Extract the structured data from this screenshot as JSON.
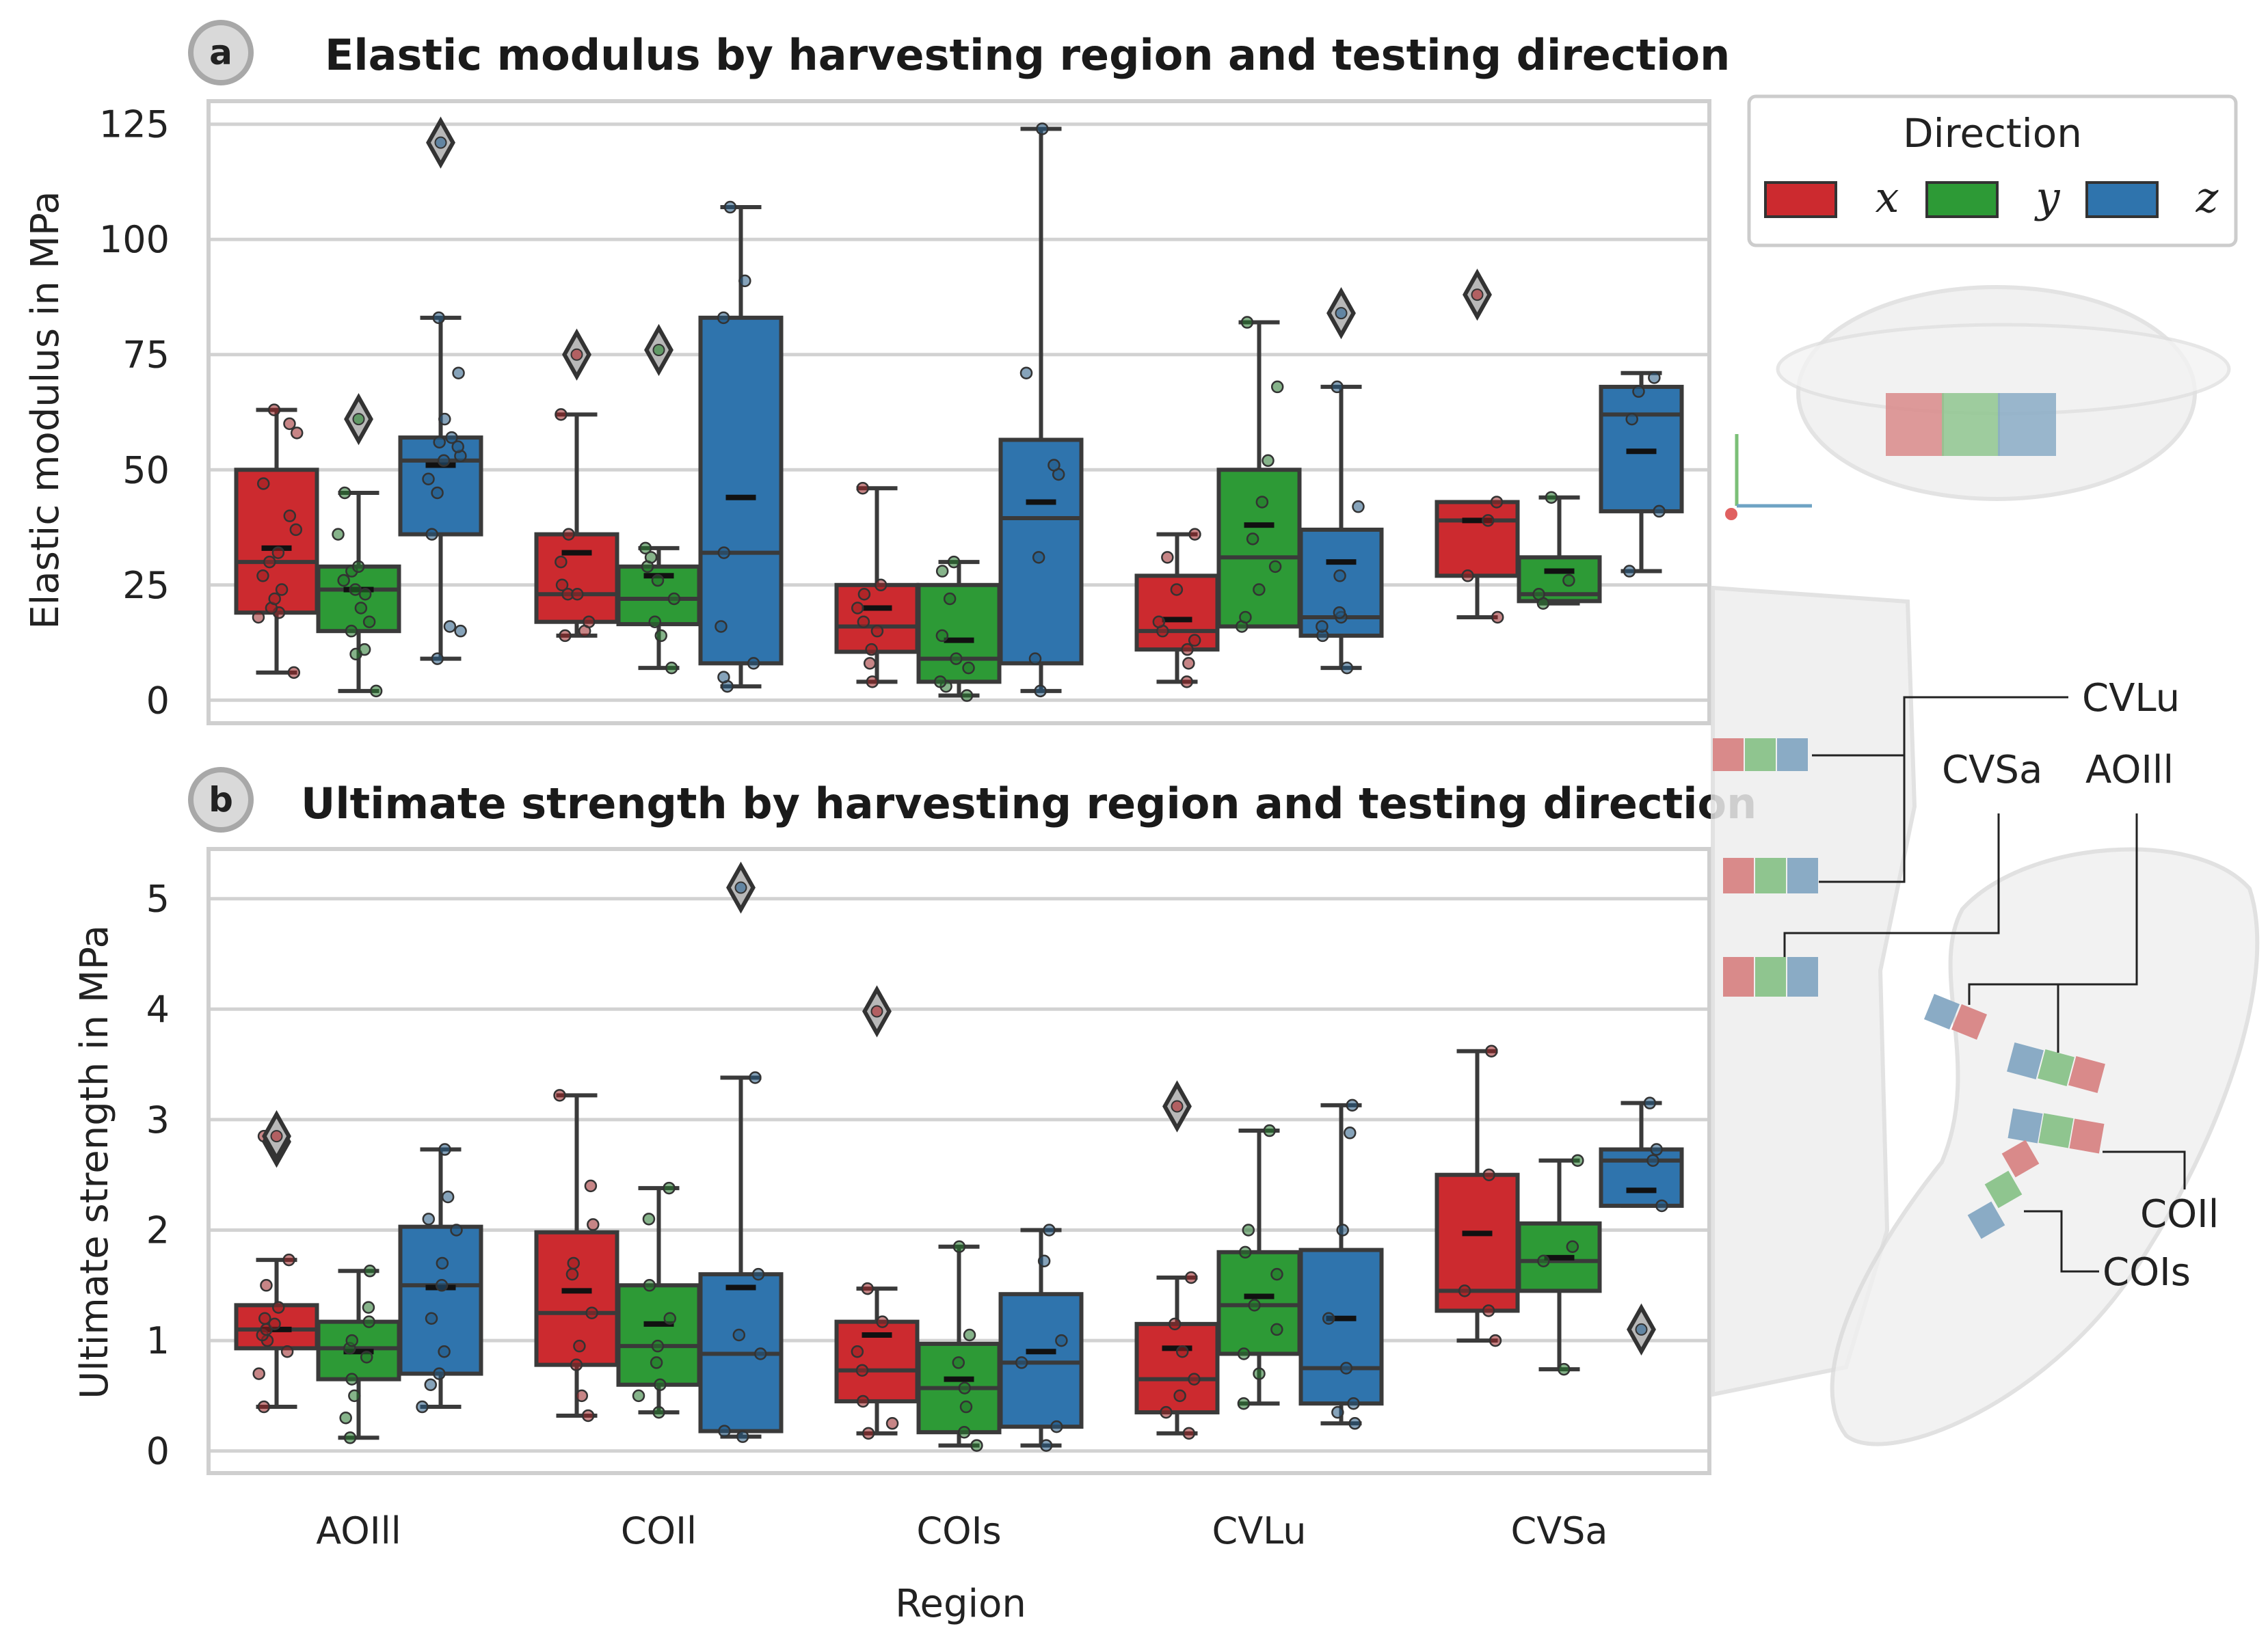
{
  "colors": {
    "x": "#cc2a2f",
    "y": "#2d9a36",
    "z": "#2f74ad"
  },
  "legend": {
    "title": "Direction",
    "items": [
      {
        "key": "x",
        "label": "x"
      },
      {
        "key": "y",
        "label": "y"
      },
      {
        "key": "z",
        "label": "z"
      }
    ]
  },
  "xlabel": "Region",
  "illustration": {
    "labels": [
      "CVLu",
      "CVSa",
      "AOIll",
      "COIl",
      "COIs"
    ]
  },
  "chart_data": [
    {
      "type": "box",
      "badge": "a",
      "title": "Elastic modulus by harvesting region and testing direction",
      "ylabel": "Elastic modulus in MPa",
      "ylim": [
        -5,
        130
      ],
      "yticks": [
        "0",
        "25",
        "50",
        "75",
        "100",
        "125"
      ],
      "ytick_values": [
        0,
        25,
        50,
        75,
        100,
        125
      ],
      "categories": [
        "AOIll",
        "COIl",
        "COIs",
        "CVLu",
        "CVSa"
      ],
      "series": [
        {
          "name": "x",
          "boxes": [
            {
              "q1": 19,
              "median": 30,
              "q3": 50,
              "whislo": 6,
              "whishi": 63,
              "mean": 33,
              "outliers": [],
              "points": [
                6,
                18,
                19,
                20,
                22,
                24,
                27,
                30,
                32,
                37,
                40,
                47,
                58,
                60,
                63
              ]
            },
            {
              "q1": 17,
              "median": 23,
              "q3": 36,
              "whislo": 14,
              "whishi": 62,
              "mean": 32,
              "outliers": [
                75
              ],
              "points": [
                14,
                15,
                17,
                23,
                23,
                25,
                30,
                36,
                62
              ]
            },
            {
              "q1": 10.5,
              "median": 16,
              "q3": 25,
              "whislo": 4,
              "whishi": 46,
              "mean": 20,
              "outliers": [],
              "points": [
                4,
                8,
                11,
                15,
                17,
                20,
                23,
                25,
                46
              ]
            },
            {
              "q1": 11,
              "median": 15,
              "q3": 27,
              "whislo": 4,
              "whishi": 36,
              "mean": 17.5,
              "outliers": [],
              "points": [
                4,
                8,
                11,
                13,
                15,
                17,
                24,
                31,
                36
              ]
            },
            {
              "q1": 27,
              "median": 39,
              "q3": 43,
              "whislo": 18,
              "whishi": 43,
              "mean": 39,
              "outliers": [
                88
              ],
              "points": [
                18,
                27,
                39,
                43
              ]
            }
          ]
        },
        {
          "name": "y",
          "boxes": [
            {
              "q1": 15,
              "median": 24,
              "q3": 29,
              "whislo": 2,
              "whishi": 45,
              "mean": 24,
              "outliers": [
                61
              ],
              "points": [
                2,
                10,
                11,
                15,
                17,
                20,
                23,
                24,
                26,
                28,
                29,
                36,
                45
              ]
            },
            {
              "q1": 16.5,
              "median": 22,
              "q3": 29,
              "whislo": 7,
              "whishi": 33,
              "mean": 27,
              "outliers": [
                76
              ],
              "points": [
                7,
                14,
                17,
                22,
                26,
                29,
                31,
                33
              ]
            },
            {
              "q1": 4,
              "median": 9,
              "q3": 25,
              "whislo": 1,
              "whishi": 30,
              "mean": 13,
              "outliers": [],
              "points": [
                1,
                3,
                4,
                7,
                9,
                14,
                22,
                28,
                30
              ]
            },
            {
              "q1": 16,
              "median": 31,
              "q3": 50,
              "whislo": 16,
              "whishi": 82,
              "mean": 38,
              "outliers": [],
              "points": [
                16,
                18,
                24,
                29,
                35,
                43,
                52,
                68,
                82
              ]
            },
            {
              "q1": 21.5,
              "median": 23,
              "q3": 31,
              "whislo": 21,
              "whishi": 44,
              "mean": 28,
              "outliers": [],
              "points": [
                21,
                23,
                26,
                44
              ]
            }
          ]
        },
        {
          "name": "z",
          "boxes": [
            {
              "q1": 36,
              "median": 52,
              "q3": 57,
              "whislo": 9,
              "whishi": 83,
              "mean": 51,
              "outliers": [
                121
              ],
              "points": [
                9,
                15,
                16,
                36,
                45,
                48,
                52,
                53,
                55,
                56,
                57,
                61,
                71,
                83
              ]
            },
            {
              "q1": 8,
              "median": 32,
              "q3": 83,
              "whislo": 3,
              "whishi": 107,
              "mean": 44,
              "outliers": [],
              "points": [
                3,
                5,
                8,
                16,
                32,
                83,
                91,
                107
              ]
            },
            {
              "q1": 8,
              "median": 39.5,
              "q3": 56.5,
              "whislo": 2,
              "whishi": 124,
              "mean": 43,
              "outliers": [],
              "points": [
                2,
                9,
                31,
                49,
                51,
                71,
                124
              ]
            },
            {
              "q1": 14,
              "median": 18,
              "q3": 37,
              "whislo": 7,
              "whishi": 68,
              "mean": 30,
              "outliers": [
                84
              ],
              "points": [
                7,
                14,
                16,
                18,
                19,
                27,
                42,
                68
              ]
            },
            {
              "q1": 41,
              "median": 62,
              "q3": 68,
              "whislo": 28,
              "whishi": 71,
              "mean": 54,
              "outliers": [],
              "points": [
                28,
                41,
                61,
                67,
                70
              ]
            }
          ]
        }
      ]
    },
    {
      "type": "box",
      "badge": "b",
      "title": "Ultimate strength by harvesting region and testing direction",
      "ylabel": "Ultimate strength in MPa",
      "ylim": [
        -0.2,
        5.45
      ],
      "yticks": [
        "0",
        "1",
        "2",
        "3",
        "4",
        "5"
      ],
      "ytick_values": [
        0,
        1,
        2,
        3,
        4,
        5
      ],
      "categories": [
        "AOIll",
        "COIl",
        "COIs",
        "CVLu",
        "CVSa"
      ],
      "series": [
        {
          "name": "x",
          "boxes": [
            {
              "q1": 0.93,
              "median": 1.1,
              "q3": 1.32,
              "whislo": 0.4,
              "whishi": 1.73,
              "mean": 1.1,
              "outliers": [
                2.8,
                2.85
              ],
              "points": [
                0.4,
                0.7,
                0.9,
                1.0,
                1.05,
                1.1,
                1.15,
                1.2,
                1.3,
                1.5,
                1.73,
                2.85
              ]
            },
            {
              "q1": 0.78,
              "median": 1.25,
              "q3": 1.98,
              "whislo": 0.32,
              "whishi": 3.22,
              "mean": 1.45,
              "outliers": [],
              "points": [
                0.32,
                0.5,
                0.78,
                0.95,
                1.25,
                1.6,
                1.7,
                2.05,
                2.4,
                3.22
              ]
            },
            {
              "q1": 0.45,
              "median": 0.73,
              "q3": 1.17,
              "whislo": 0.16,
              "whishi": 1.47,
              "mean": 1.05,
              "outliers": [
                3.98
              ],
              "points": [
                0.16,
                0.25,
                0.45,
                0.73,
                0.9,
                1.17,
                1.47
              ]
            },
            {
              "q1": 0.35,
              "median": 0.65,
              "q3": 1.15,
              "whislo": 0.16,
              "whishi": 1.57,
              "mean": 0.93,
              "outliers": [
                3.12
              ],
              "points": [
                0.16,
                0.35,
                0.5,
                0.65,
                0.9,
                1.15,
                1.57
              ]
            },
            {
              "q1": 1.27,
              "median": 1.45,
              "q3": 2.5,
              "whislo": 1.0,
              "whishi": 3.62,
              "mean": 1.97,
              "outliers": [],
              "points": [
                1.0,
                1.27,
                1.45,
                2.5,
                3.62
              ]
            }
          ]
        },
        {
          "name": "y",
          "boxes": [
            {
              "q1": 0.65,
              "median": 0.93,
              "q3": 1.17,
              "whislo": 0.12,
              "whishi": 1.63,
              "mean": 0.9,
              "outliers": [],
              "points": [
                0.12,
                0.3,
                0.5,
                0.65,
                0.85,
                0.93,
                1.0,
                1.17,
                1.3,
                1.63
              ]
            },
            {
              "q1": 0.6,
              "median": 0.95,
              "q3": 1.5,
              "whislo": 0.35,
              "whishi": 2.38,
              "mean": 1.15,
              "outliers": [],
              "points": [
                0.35,
                0.5,
                0.6,
                0.8,
                0.95,
                1.2,
                1.5,
                2.1,
                2.38
              ]
            },
            {
              "q1": 0.17,
              "median": 0.57,
              "q3": 0.97,
              "whislo": 0.05,
              "whishi": 1.85,
              "mean": 0.65,
              "outliers": [],
              "points": [
                0.05,
                0.17,
                0.4,
                0.57,
                0.8,
                1.05,
                1.85
              ]
            },
            {
              "q1": 0.88,
              "median": 1.32,
              "q3": 1.8,
              "whislo": 0.43,
              "whishi": 2.9,
              "mean": 1.4,
              "outliers": [],
              "points": [
                0.43,
                0.7,
                0.88,
                1.1,
                1.32,
                1.6,
                1.8,
                2.0,
                2.9
              ]
            },
            {
              "q1": 1.45,
              "median": 1.72,
              "q3": 2.06,
              "whislo": 0.74,
              "whishi": 2.63,
              "mean": 1.75,
              "outliers": [],
              "points": [
                0.74,
                1.72,
                1.85,
                2.63
              ]
            }
          ]
        },
        {
          "name": "z",
          "boxes": [
            {
              "q1": 0.7,
              "median": 1.5,
              "q3": 2.03,
              "whislo": 0.4,
              "whishi": 2.73,
              "mean": 1.48,
              "outliers": [],
              "points": [
                0.4,
                0.6,
                0.7,
                0.9,
                1.2,
                1.5,
                1.7,
                2.0,
                2.1,
                2.3,
                2.73
              ]
            },
            {
              "q1": 0.18,
              "median": 0.88,
              "q3": 1.6,
              "whislo": 0.13,
              "whishi": 3.38,
              "mean": 1.48,
              "outliers": [
                5.1
              ],
              "points": [
                0.13,
                0.18,
                0.88,
                1.05,
                1.6,
                3.38
              ]
            },
            {
              "q1": 0.22,
              "median": 0.8,
              "q3": 1.42,
              "whislo": 0.05,
              "whishi": 2.0,
              "mean": 0.9,
              "outliers": [],
              "points": [
                0.05,
                0.22,
                0.8,
                1.0,
                1.72,
                2.0
              ]
            },
            {
              "q1": 0.43,
              "median": 0.75,
              "q3": 1.82,
              "whislo": 0.25,
              "whishi": 3.13,
              "mean": 1.2,
              "outliers": [],
              "points": [
                0.25,
                0.35,
                0.43,
                0.75,
                1.2,
                2.0,
                2.88,
                3.13
              ]
            },
            {
              "q1": 2.22,
              "median": 2.63,
              "q3": 2.73,
              "whislo": 2.22,
              "whishi": 3.15,
              "mean": 2.36,
              "outliers": [
                1.1
              ],
              "points": [
                2.22,
                2.63,
                2.73,
                3.15
              ]
            }
          ]
        }
      ]
    }
  ]
}
